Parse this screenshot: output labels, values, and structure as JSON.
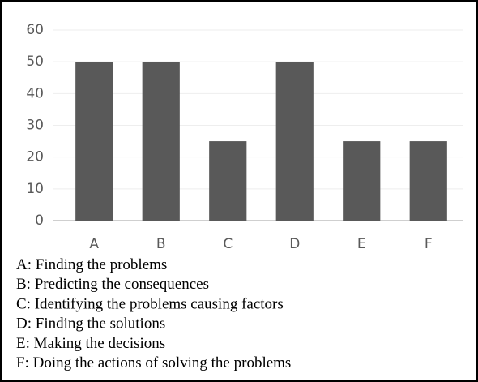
{
  "chart_data": {
    "type": "bar",
    "categories": [
      "A",
      "B",
      "C",
      "D",
      "E",
      "F"
    ],
    "values": [
      50,
      50,
      25,
      50,
      25,
      25
    ],
    "color": "#595959",
    "ylim": [
      0,
      60
    ],
    "yticks": [
      0,
      10,
      20,
      30,
      40,
      50,
      60
    ],
    "grid": true,
    "annotations": [
      "A: Finding the problems",
      "B: Predicting the consequences",
      "C: Identifying the problems causing factors",
      "D: Finding the solutions",
      "E: Making the decisions",
      "F: Doing the actions of solving the problems"
    ]
  }
}
